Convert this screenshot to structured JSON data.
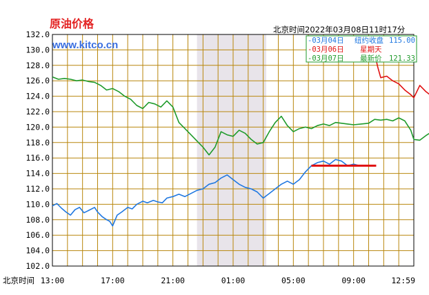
{
  "header": {
    "title": "原油价格",
    "site": "www.kitco.cn",
    "timestamp": "北京时间2022年03月08日11时17分"
  },
  "legend": [
    {
      "date": "-03月04日",
      "desc": "纽约收盘",
      "value": "115.00",
      "color": "#1f77e0"
    },
    {
      "date": "-03月06日",
      "desc": "星期天",
      "value": "",
      "color": "#e01010"
    },
    {
      "date": "-03月07日",
      "desc": "最新价",
      "value": "121.33",
      "color": "#1e9a2a"
    }
  ],
  "colors": {
    "grid": "#b8860b",
    "frame": "#000000",
    "shade": "#e8e4ea",
    "background": "#ffffff"
  },
  "chart_data": {
    "type": "line",
    "xlabel": "北京时间",
    "x_ticks": [
      "13:00",
      "17:00",
      "21:00",
      "01:00",
      "05:00",
      "09:00",
      "12:59"
    ],
    "x_tick_hours": [
      0,
      4,
      8,
      12,
      16,
      20,
      24
    ],
    "ylim": [
      102.0,
      132.0
    ],
    "y_ticks": [
      "102.0",
      "104.0",
      "106.0",
      "108.0",
      "110.0",
      "112.0",
      "114.0",
      "116.0",
      "118.0",
      "120.0",
      "122.0",
      "124.0",
      "126.0",
      "128.0",
      "130.0",
      "132.0"
    ],
    "grid": true,
    "shaded_region_hours": [
      9.6,
      14.2
    ],
    "series": [
      {
        "name": "03月04日",
        "color": "#1f77e0",
        "points": [
          [
            0,
            109.8
          ],
          [
            0.3,
            110.1
          ],
          [
            0.6,
            109.5
          ],
          [
            0.9,
            109.0
          ],
          [
            1.2,
            108.6
          ],
          [
            1.5,
            109.3
          ],
          [
            1.8,
            109.6
          ],
          [
            2.1,
            108.9
          ],
          [
            2.4,
            109.2
          ],
          [
            2.8,
            109.6
          ],
          [
            3.0,
            109.0
          ],
          [
            3.3,
            108.4
          ],
          [
            3.6,
            108.0
          ],
          [
            3.8,
            107.8
          ],
          [
            4.0,
            107.2
          ],
          [
            4.3,
            108.6
          ],
          [
            4.6,
            109.0
          ],
          [
            5.0,
            109.6
          ],
          [
            5.3,
            109.4
          ],
          [
            5.6,
            110.0
          ],
          [
            6.0,
            110.4
          ],
          [
            6.3,
            110.2
          ],
          [
            6.7,
            110.5
          ],
          [
            7.0,
            110.3
          ],
          [
            7.3,
            110.2
          ],
          [
            7.6,
            110.8
          ],
          [
            8.0,
            111.0
          ],
          [
            8.4,
            111.3
          ],
          [
            8.8,
            111.0
          ],
          [
            9.2,
            111.4
          ],
          [
            9.6,
            111.8
          ],
          [
            10.0,
            112.0
          ],
          [
            10.4,
            112.6
          ],
          [
            10.8,
            112.8
          ],
          [
            11.2,
            113.4
          ],
          [
            11.6,
            113.8
          ],
          [
            12.0,
            113.2
          ],
          [
            12.4,
            112.6
          ],
          [
            12.8,
            112.2
          ],
          [
            13.2,
            112.0
          ],
          [
            13.6,
            111.6
          ],
          [
            14.0,
            110.8
          ],
          [
            14.4,
            111.4
          ],
          [
            14.8,
            112.0
          ],
          [
            15.2,
            112.6
          ],
          [
            15.6,
            113.0
          ],
          [
            16.0,
            112.6
          ],
          [
            16.4,
            113.2
          ],
          [
            16.8,
            114.2
          ],
          [
            17.2,
            115.0
          ],
          [
            17.6,
            115.4
          ],
          [
            18.0,
            115.6
          ],
          [
            18.4,
            115.2
          ],
          [
            18.8,
            115.8
          ],
          [
            19.2,
            115.6
          ],
          [
            19.6,
            115.0
          ],
          [
            20.0,
            115.2
          ],
          [
            20.4,
            115.0
          ],
          [
            21.0,
            115.0
          ],
          [
            21.5,
            115.0
          ]
        ]
      },
      {
        "name": "03月06日",
        "color": "#e01010",
        "points": [
          [
            21.4,
            129.6
          ],
          [
            21.6,
            127.8
          ],
          [
            21.8,
            126.4
          ],
          [
            22.2,
            126.6
          ],
          [
            22.6,
            126.0
          ],
          [
            23.0,
            125.6
          ],
          [
            23.4,
            124.8
          ],
          [
            23.8,
            124.2
          ],
          [
            24.0,
            123.8
          ],
          [
            24.4,
            125.4
          ],
          [
            24.8,
            124.6
          ],
          [
            25.2,
            124.0
          ],
          [
            25.6,
            124.2
          ],
          [
            26.0,
            124.0
          ],
          [
            26.4,
            124.6
          ],
          [
            26.8,
            124.2
          ],
          [
            27.2,
            125.8
          ],
          [
            27.6,
            125.2
          ],
          [
            28.0,
            124.6
          ],
          [
            28.4,
            124.8
          ],
          [
            28.8,
            124.4
          ],
          [
            29.2,
            125.0
          ],
          [
            29.6,
            125.6
          ],
          [
            30.0,
            124.8
          ],
          [
            30.4,
            125.2
          ],
          [
            30.8,
            125.4
          ],
          [
            31.2,
            124.9
          ],
          [
            31.6,
            125.3
          ],
          [
            32.0,
            125.8
          ],
          [
            32.4,
            126.0
          ]
        ]
      },
      {
        "name": "03月07日",
        "color": "#1e9a2a",
        "points": [
          [
            0,
            126.5
          ],
          [
            0.4,
            126.2
          ],
          [
            0.8,
            126.3
          ],
          [
            1.2,
            126.2
          ],
          [
            1.6,
            126.0
          ],
          [
            2.0,
            126.1
          ],
          [
            2.4,
            125.9
          ],
          [
            2.8,
            125.8
          ],
          [
            3.2,
            125.4
          ],
          [
            3.6,
            124.8
          ],
          [
            4.0,
            125.0
          ],
          [
            4.4,
            124.6
          ],
          [
            4.8,
            124.0
          ],
          [
            5.2,
            123.6
          ],
          [
            5.6,
            122.8
          ],
          [
            6.0,
            122.4
          ],
          [
            6.4,
            123.2
          ],
          [
            6.8,
            123.0
          ],
          [
            7.2,
            122.6
          ],
          [
            7.6,
            123.4
          ],
          [
            8.0,
            122.6
          ],
          [
            8.4,
            120.6
          ],
          [
            8.8,
            119.8
          ],
          [
            9.2,
            119.0
          ],
          [
            9.6,
            118.2
          ],
          [
            10.0,
            117.4
          ],
          [
            10.4,
            116.4
          ],
          [
            10.8,
            117.4
          ],
          [
            11.2,
            119.4
          ],
          [
            11.6,
            119.0
          ],
          [
            12.0,
            118.8
          ],
          [
            12.4,
            119.6
          ],
          [
            12.8,
            119.2
          ],
          [
            13.2,
            118.4
          ],
          [
            13.6,
            117.8
          ],
          [
            14.0,
            118.0
          ],
          [
            14.4,
            119.4
          ],
          [
            14.8,
            120.6
          ],
          [
            15.2,
            121.4
          ],
          [
            15.6,
            120.2
          ],
          [
            16.0,
            119.4
          ],
          [
            16.4,
            119.8
          ],
          [
            16.8,
            120.0
          ],
          [
            17.2,
            119.8
          ],
          [
            17.6,
            120.2
          ],
          [
            18.0,
            120.4
          ],
          [
            18.4,
            120.2
          ],
          [
            18.8,
            120.6
          ],
          [
            19.2,
            120.5
          ],
          [
            19.6,
            120.4
          ],
          [
            20.0,
            120.3
          ],
          [
            20.5,
            120.4
          ],
          [
            21.0,
            120.5
          ],
          [
            21.4,
            121.0
          ],
          [
            21.8,
            120.9
          ],
          [
            22.2,
            121.0
          ],
          [
            22.6,
            120.8
          ],
          [
            23.0,
            121.2
          ],
          [
            23.4,
            120.8
          ],
          [
            23.8,
            119.6
          ],
          [
            24.0,
            118.4
          ],
          [
            24.4,
            118.3
          ],
          [
            24.8,
            118.9
          ],
          [
            25.2,
            119.4
          ],
          [
            25.6,
            120.8
          ],
          [
            26.0,
            121.8
          ],
          [
            26.3,
            122.0
          ]
        ]
      }
    ]
  }
}
